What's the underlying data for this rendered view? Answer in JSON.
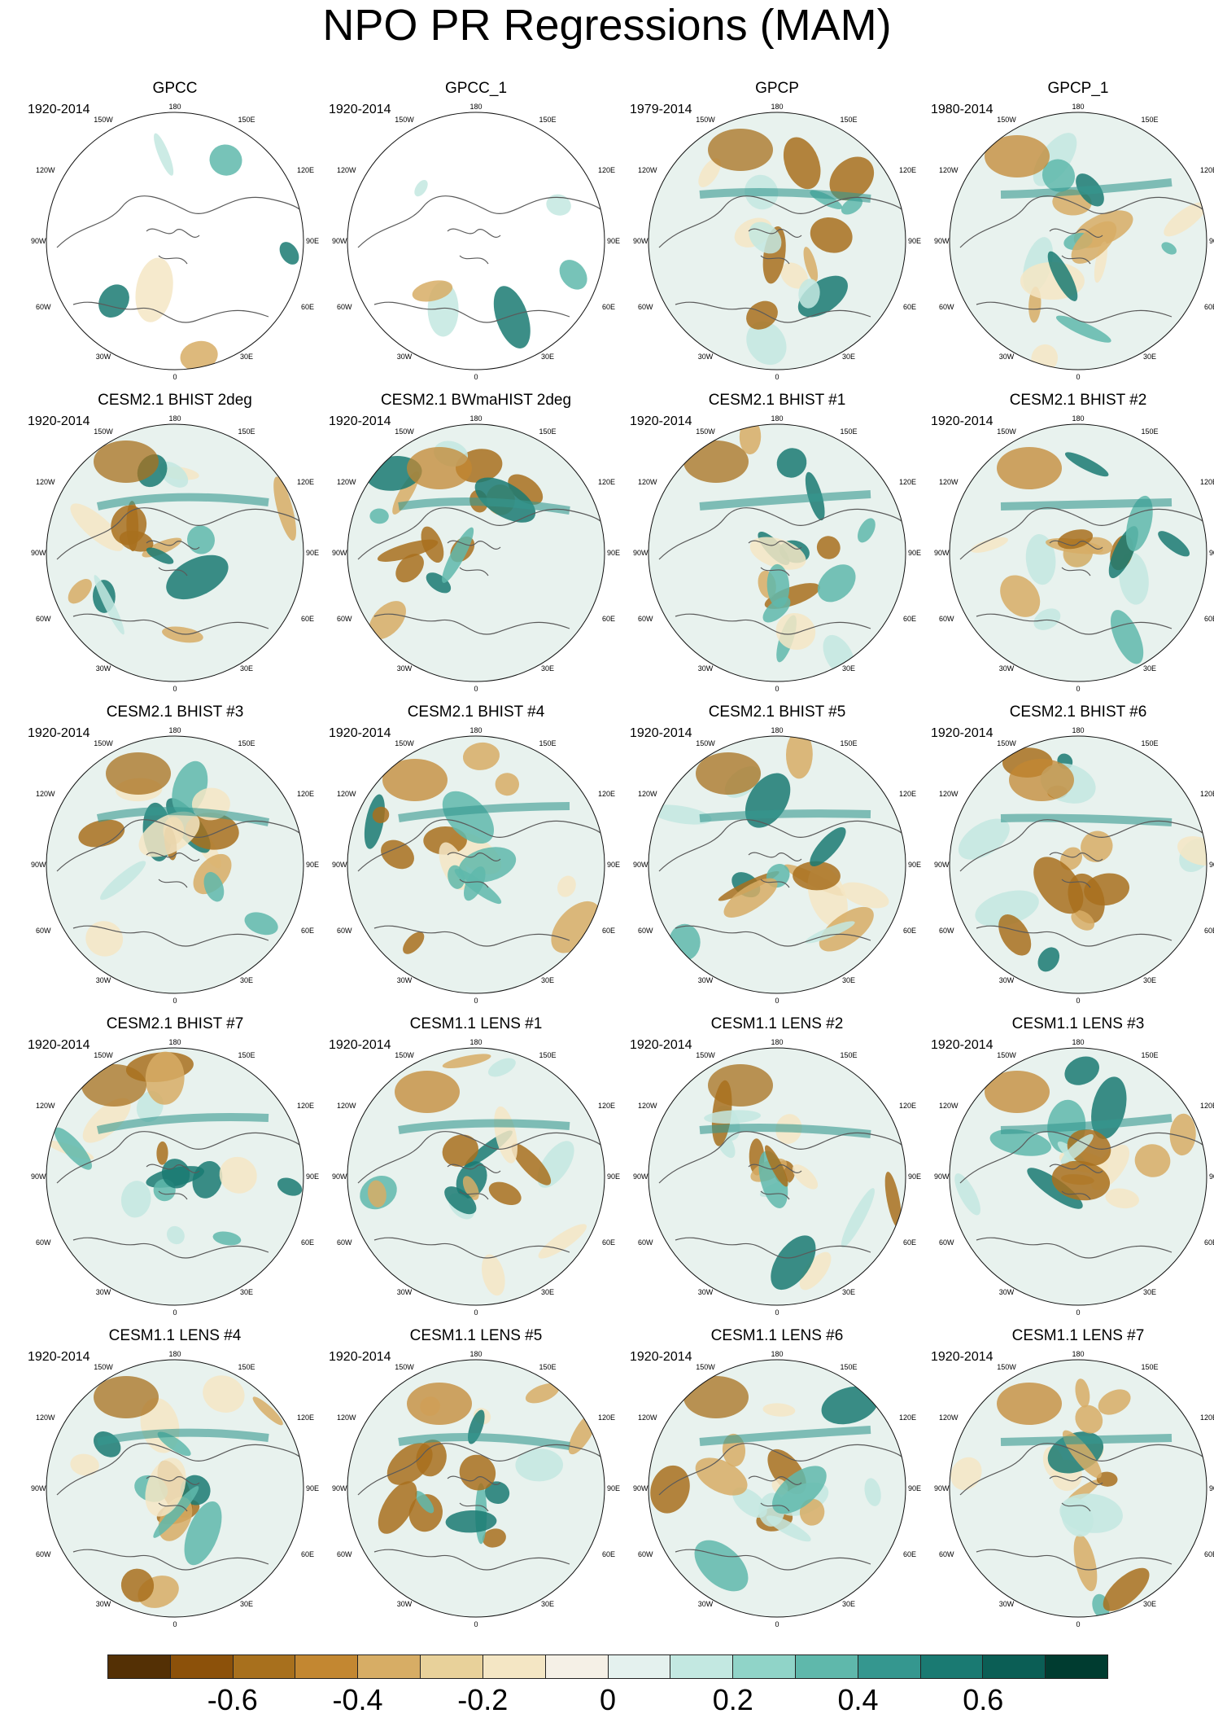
{
  "title": "NPO PR Regressions (MAM)",
  "coordinate_labels": {
    "n": "180",
    "nw": "150W",
    "ne": "150E",
    "wnw": "120W",
    "ene": "120E",
    "w": "90W",
    "e": "90E",
    "wsw": "60W",
    "ese": "60E",
    "sw": "30W",
    "se": "30E",
    "s": "0"
  },
  "panels": [
    {
      "title": "GPCC",
      "years": "1920-2014",
      "masked": true
    },
    {
      "title": "GPCC_1",
      "years": "1920-2014",
      "masked": true
    },
    {
      "title": "GPCP",
      "years": "1979-2014",
      "masked": false
    },
    {
      "title": "GPCP_1",
      "years": "1980-2014",
      "masked": false
    },
    {
      "title": "CESM2.1 BHIST 2deg",
      "years": "1920-2014",
      "masked": false
    },
    {
      "title": "CESM2.1 BWmaHIST 2deg",
      "years": "1920-2014",
      "masked": false
    },
    {
      "title": "CESM2.1 BHIST #1",
      "years": "1920-2014",
      "masked": false
    },
    {
      "title": "CESM2.1 BHIST #2",
      "years": "1920-2014",
      "masked": false
    },
    {
      "title": "CESM2.1 BHIST #3",
      "years": "1920-2014",
      "masked": false
    },
    {
      "title": "CESM2.1 BHIST #4",
      "years": "1920-2014",
      "masked": false
    },
    {
      "title": "CESM2.1 BHIST #5",
      "years": "1920-2014",
      "masked": false
    },
    {
      "title": "CESM2.1 BHIST #6",
      "years": "1920-2014",
      "masked": false
    },
    {
      "title": "CESM2.1 BHIST #7",
      "years": "1920-2014",
      "masked": false
    },
    {
      "title": "CESM1.1 LENS #1",
      "years": "1920-2014",
      "masked": false
    },
    {
      "title": "CESM1.1 LENS #2",
      "years": "1920-2014",
      "masked": false
    },
    {
      "title": "CESM1.1 LENS #3",
      "years": "1920-2014",
      "masked": false
    },
    {
      "title": "CESM1.1 LENS #4",
      "years": "1920-2014",
      "masked": false
    },
    {
      "title": "CESM1.1 LENS #5",
      "years": "1920-2014",
      "masked": false
    },
    {
      "title": "CESM1.1 LENS #6",
      "years": "1920-2014",
      "masked": false
    },
    {
      "title": "CESM1.1 LENS #7",
      "years": "1920-2014",
      "masked": false
    }
  ],
  "colorbar": {
    "colors": [
      "#543005",
      "#8c510a",
      "#a8701d",
      "#c38731",
      "#d7ad65",
      "#e8d19a",
      "#f4e6c4",
      "#f5f0e6",
      "#e4f1ee",
      "#c3e8e1",
      "#90d4c8",
      "#5fb8ab",
      "#35978f",
      "#1a7a72",
      "#0b5e55",
      "#003c30"
    ],
    "tick_labels": [
      "-0.6",
      "-0.4",
      "-0.2",
      "0",
      "0.2",
      "0.4",
      "0.6"
    ]
  }
}
